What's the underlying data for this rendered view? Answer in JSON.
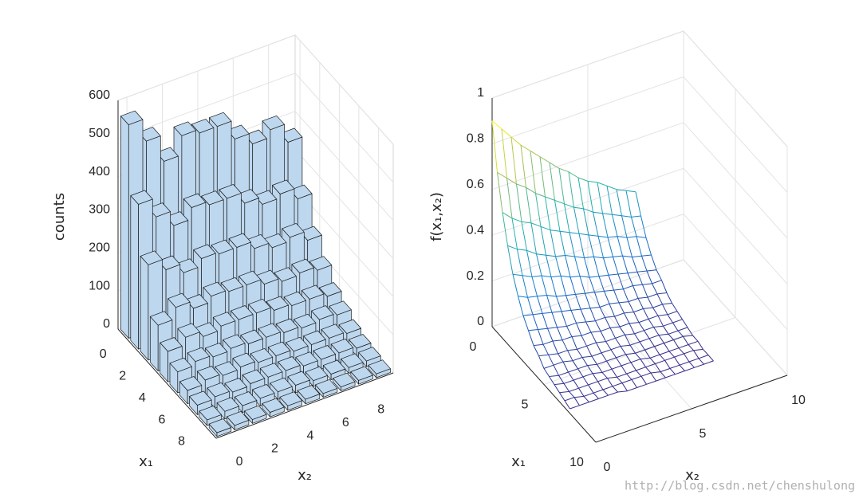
{
  "chart_data": [
    {
      "type": "bar3",
      "xlabel": "x₁",
      "ylabel": "x₂",
      "zlabel": "counts",
      "color": "#bdd7ee",
      "grid": true,
      "x": [
        0,
        1,
        2,
        3,
        4,
        5,
        6,
        7,
        8,
        9
      ],
      "y": [
        0,
        1,
        2,
        3,
        4,
        5,
        6,
        7,
        8,
        9
      ],
      "values": [
        [
          560,
          500,
          430,
          480,
          470,
          470,
          420,
          390,
          410,
          360
        ],
        [
          380,
          330,
          290,
          320,
          310,
          310,
          280,
          260,
          270,
          240
        ],
        [
          250,
          220,
          195,
          215,
          210,
          210,
          190,
          175,
          185,
          160
        ],
        [
          120,
          150,
          130,
          145,
          140,
          140,
          125,
          115,
          120,
          110
        ],
        [
          80,
          100,
          85,
          95,
          95,
          95,
          85,
          80,
          80,
          70
        ],
        [
          55,
          65,
          60,
          65,
          60,
          60,
          55,
          50,
          55,
          50
        ],
        [
          35,
          45,
          40,
          45,
          40,
          40,
          35,
          35,
          35,
          30
        ],
        [
          25,
          30,
          25,
          30,
          30,
          30,
          25,
          25,
          25,
          20
        ],
        [
          15,
          20,
          18,
          20,
          20,
          20,
          15,
          15,
          15,
          15
        ],
        [
          10,
          12,
          10,
          12,
          12,
          12,
          10,
          10,
          10,
          10
        ]
      ],
      "xlim": [
        -0.5,
        9.5
      ],
      "ylim": [
        -0.5,
        9.5
      ],
      "zlim": [
        0,
        600
      ],
      "xticks": [
        0,
        2,
        4,
        6,
        8
      ],
      "yticks": [
        0,
        2,
        4,
        6,
        8
      ],
      "zticks": [
        0,
        100,
        200,
        300,
        400,
        500,
        600
      ]
    },
    {
      "type": "mesh",
      "xlabel": "x₁",
      "ylabel": "x₂",
      "zlabel": "f(x₁,x₂)",
      "colormap": "parula",
      "grid": true,
      "x": [
        0,
        0.5,
        1,
        1.5,
        2,
        2.5,
        3,
        3.5,
        4,
        4.5,
        5,
        5.5,
        6,
        6.5,
        7,
        7.5
      ],
      "y": [
        0,
        0.5,
        1,
        1.5,
        2,
        2.5,
        3,
        3.5,
        4,
        4.5,
        5,
        5.5,
        6,
        6.5,
        7,
        7.5
      ],
      "values": [
        [
          0.9,
          0.85,
          0.8,
          0.75,
          0.71,
          0.67,
          0.63,
          0.59,
          0.56,
          0.52,
          0.49,
          0.47,
          0.44,
          0.41,
          0.39,
          0.37
        ],
        [
          0.7,
          0.66,
          0.62,
          0.59,
          0.55,
          0.52,
          0.49,
          0.46,
          0.43,
          0.41,
          0.38,
          0.36,
          0.34,
          0.32,
          0.3,
          0.29
        ],
        [
          0.55,
          0.51,
          0.48,
          0.46,
          0.43,
          0.4,
          0.38,
          0.36,
          0.34,
          0.32,
          0.3,
          0.28,
          0.27,
          0.25,
          0.24,
          0.22
        ],
        [
          0.43,
          0.4,
          0.38,
          0.35,
          0.33,
          0.31,
          0.3,
          0.28,
          0.26,
          0.25,
          0.23,
          0.22,
          0.21,
          0.19,
          0.18,
          0.17
        ],
        [
          0.33,
          0.31,
          0.29,
          0.28,
          0.26,
          0.25,
          0.23,
          0.22,
          0.2,
          0.19,
          0.18,
          0.17,
          0.16,
          0.15,
          0.14,
          0.13
        ],
        [
          0.26,
          0.24,
          0.23,
          0.22,
          0.2,
          0.19,
          0.18,
          0.17,
          0.16,
          0.15,
          0.14,
          0.13,
          0.13,
          0.12,
          0.11,
          0.11
        ],
        [
          0.2,
          0.19,
          0.18,
          0.17,
          0.16,
          0.15,
          0.14,
          0.13,
          0.12,
          0.12,
          0.11,
          0.1,
          0.1,
          0.09,
          0.09,
          0.08
        ],
        [
          0.16,
          0.15,
          0.14,
          0.13,
          0.12,
          0.12,
          0.11,
          0.1,
          0.1,
          0.09,
          0.09,
          0.08,
          0.08,
          0.07,
          0.07,
          0.06
        ],
        [
          0.12,
          0.11,
          0.11,
          0.1,
          0.1,
          0.09,
          0.09,
          0.08,
          0.08,
          0.07,
          0.07,
          0.06,
          0.06,
          0.06,
          0.05,
          0.05
        ],
        [
          0.1,
          0.09,
          0.08,
          0.08,
          0.07,
          0.07,
          0.07,
          0.06,
          0.06,
          0.06,
          0.05,
          0.05,
          0.05,
          0.04,
          0.04,
          0.04
        ],
        [
          0.07,
          0.07,
          0.07,
          0.06,
          0.06,
          0.05,
          0.05,
          0.05,
          0.05,
          0.04,
          0.04,
          0.04,
          0.04,
          0.03,
          0.03,
          0.03
        ],
        [
          0.06,
          0.05,
          0.05,
          0.05,
          0.05,
          0.04,
          0.04,
          0.04,
          0.04,
          0.03,
          0.03,
          0.03,
          0.03,
          0.03,
          0.03,
          0.02
        ],
        [
          0.05,
          0.04,
          0.04,
          0.04,
          0.04,
          0.03,
          0.03,
          0.03,
          0.03,
          0.03,
          0.02,
          0.02,
          0.02,
          0.02,
          0.02,
          0.02
        ],
        [
          0.04,
          0.03,
          0.03,
          0.03,
          0.03,
          0.03,
          0.02,
          0.02,
          0.02,
          0.02,
          0.02,
          0.02,
          0.02,
          0.02,
          0.02,
          0.01
        ],
        [
          0.03,
          0.03,
          0.02,
          0.02,
          0.02,
          0.02,
          0.02,
          0.02,
          0.02,
          0.02,
          0.01,
          0.01,
          0.01,
          0.01,
          0.01,
          0.01
        ],
        [
          0.02,
          0.02,
          0.02,
          0.02,
          0.02,
          0.02,
          0.01,
          0.01,
          0.01,
          0.01,
          0.01,
          0.01,
          0.01,
          0.01,
          0.01,
          0.01
        ]
      ],
      "xlim": [
        0,
        10
      ],
      "ylim": [
        0,
        10
      ],
      "zlim": [
        0,
        1
      ],
      "xticks": [
        0,
        5,
        10
      ],
      "yticks": [
        0,
        5,
        10
      ],
      "zticks": [
        0,
        0.2,
        0.4,
        0.6,
        0.8,
        1
      ]
    }
  ],
  "watermark": "http://blog.csdn.net/chenshulong"
}
